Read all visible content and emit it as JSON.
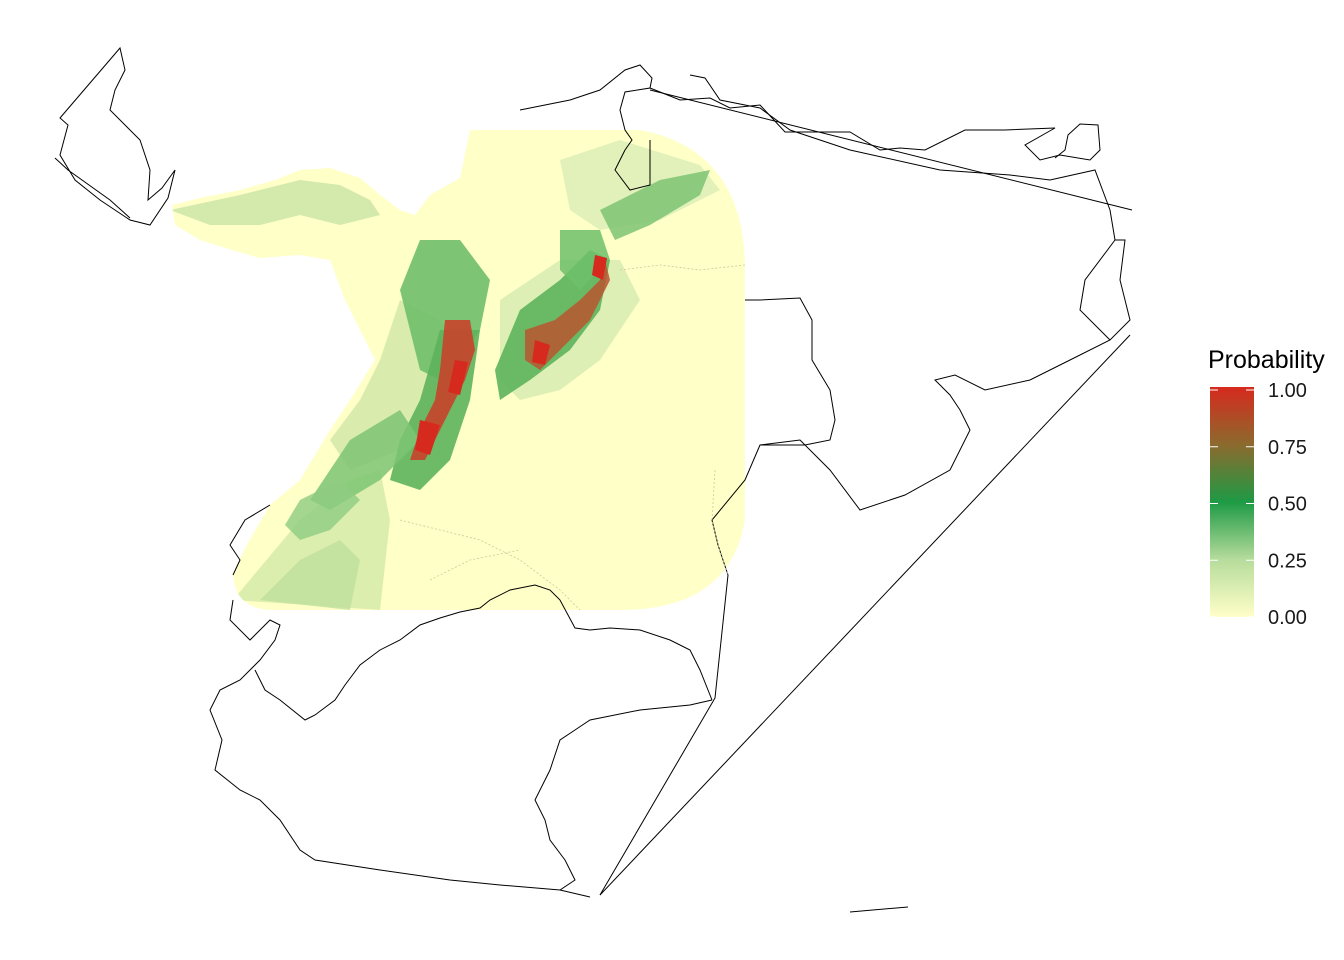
{
  "legend": {
    "title": "Probability",
    "ticks": [
      {
        "value": 1.0,
        "label": "1.00"
      },
      {
        "value": 0.75,
        "label": "0.75"
      },
      {
        "value": 0.5,
        "label": "0.50"
      },
      {
        "value": 0.25,
        "label": "0.25"
      },
      {
        "value": 0.0,
        "label": "0.00"
      }
    ],
    "colors": {
      "low": "#ffffc8",
      "mid_low": "#b6dc9c",
      "mid": "#1e9a45",
      "mid_high": "#8c6a2e",
      "high": "#d62a1e"
    }
  },
  "map": {
    "type": "probability raster over country outlines",
    "outline_color": "#000000",
    "background_color": "#ffffff"
  }
}
